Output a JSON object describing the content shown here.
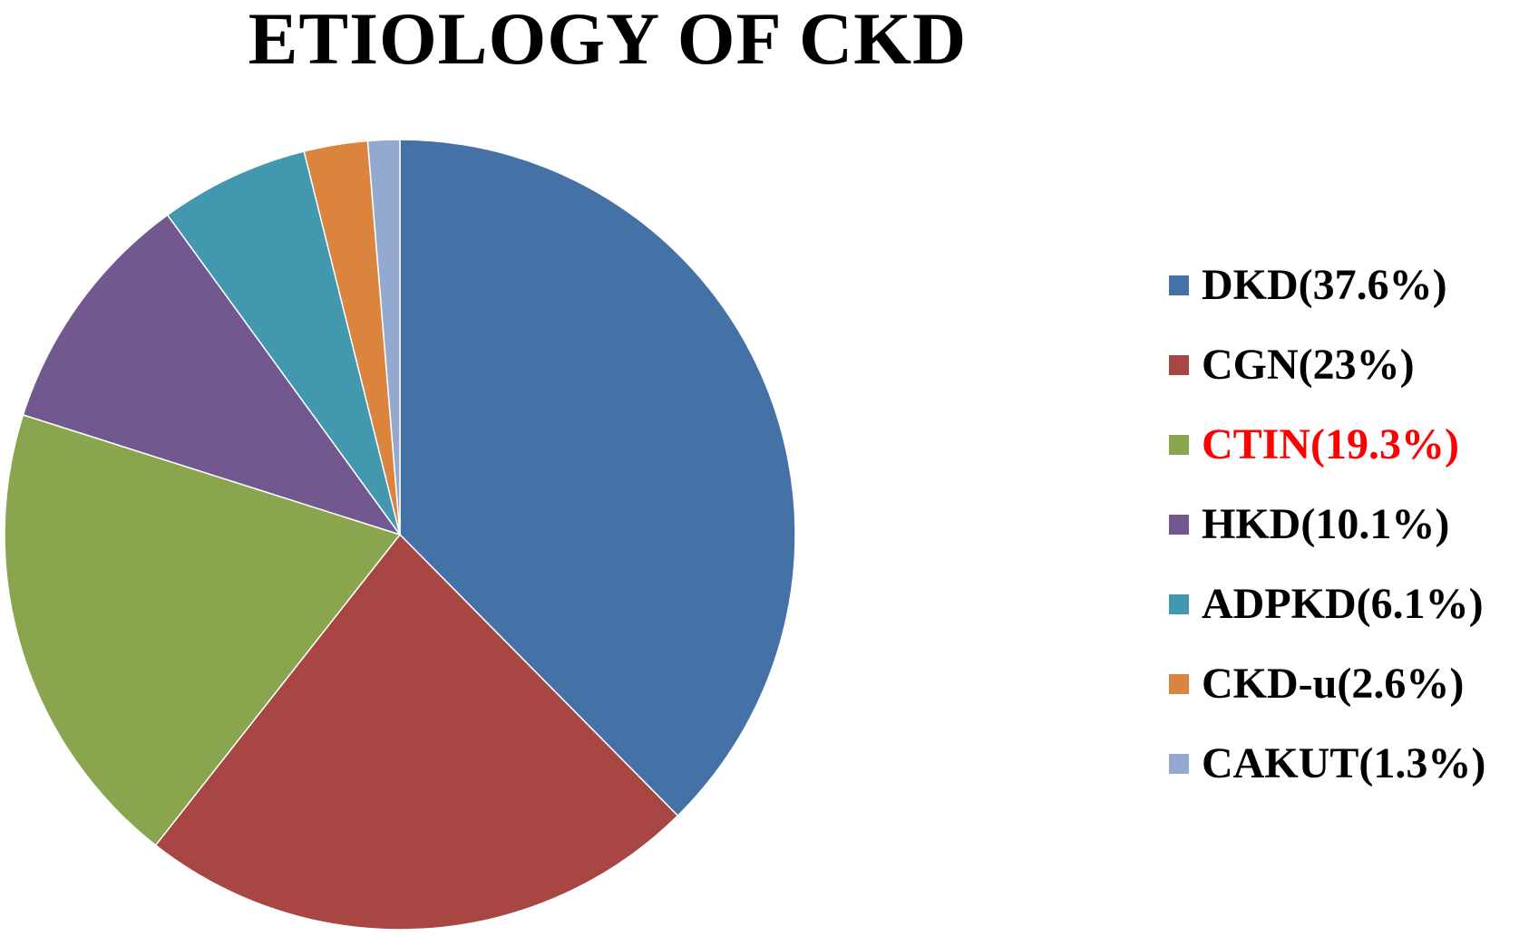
{
  "chart_data": {
    "type": "pie",
    "title": "ETIOLOGY OF CKD",
    "slices": [
      {
        "label": "DKD(37.6%)",
        "name": "DKD",
        "value": 37.6,
        "color": "#4472A6",
        "label_color": "#000000"
      },
      {
        "label": "CGN(23%)",
        "name": "CGN",
        "value": 23.0,
        "color": "#A84644",
        "label_color": "#000000"
      },
      {
        "label": "CTIN(19.3%)",
        "name": "CTIN",
        "value": 19.3,
        "color": "#89A54E",
        "label_color": "#FF0000"
      },
      {
        "label": "HKD(10.1%)",
        "name": "HKD",
        "value": 10.1,
        "color": "#71588F",
        "label_color": "#000000"
      },
      {
        "label": "ADPKD(6.1%)",
        "name": "ADPKD",
        "value": 6.1,
        "color": "#4198AF",
        "label_color": "#000000"
      },
      {
        "label": "CKD-u(2.6%)",
        "name": "CKD-u",
        "value": 2.6,
        "color": "#DB843D",
        "label_color": "#000000"
      },
      {
        "label": "CAKUT(1.3%)",
        "name": "CAKUT",
        "value": 1.3,
        "color": "#93A9CF",
        "label_color": "#000000"
      }
    ],
    "legend": "right",
    "start_angle": "12 o'clock",
    "direction": "clockwise"
  }
}
